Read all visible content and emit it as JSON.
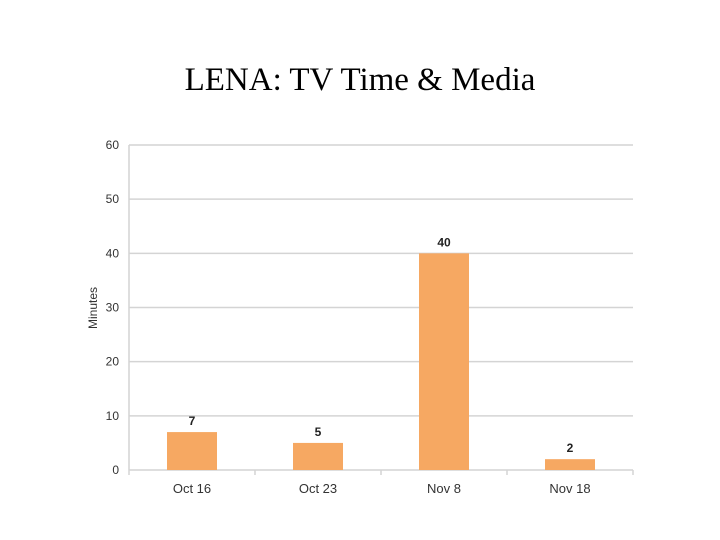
{
  "slide": {
    "title": "LENA:  TV Time & Media"
  },
  "chart_data": {
    "type": "bar",
    "title": "",
    "xlabel": "",
    "ylabel": "Minutes",
    "categories": [
      "Oct 16",
      "Oct 23",
      "Nov 8",
      "Nov 18"
    ],
    "values": [
      7,
      5,
      40,
      2
    ],
    "ylim": [
      0,
      60
    ],
    "yticks": [
      0,
      10,
      20,
      30,
      40,
      50,
      60
    ],
    "grid": true,
    "legend": "none",
    "data_labels": true,
    "bar_color": "#f6a862",
    "grid_color": "#d4d4d4"
  }
}
